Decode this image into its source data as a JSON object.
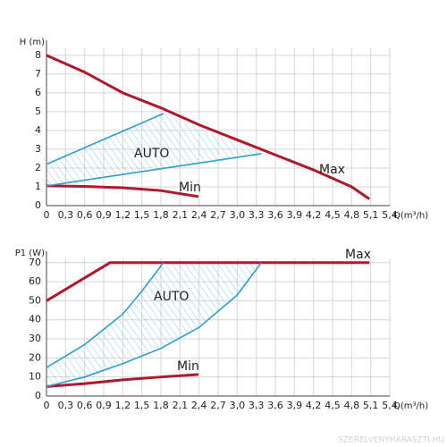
{
  "chart_data": [
    {
      "type": "line",
      "y_label": "H (m)",
      "x_label": "Q(m³/h)",
      "xlim": [
        0,
        5.4
      ],
      "ylim": [
        0,
        8.8
      ],
      "grid": true,
      "xticks": [
        0,
        {
          "value": 0.3,
          "label": "0,3"
        },
        {
          "value": 0.6,
          "label": "0,6"
        },
        {
          "value": 0.9,
          "label": "0,9"
        },
        {
          "value": 1.2,
          "label": "1,2"
        },
        {
          "value": 1.5,
          "label": "1,5"
        },
        {
          "value": 1.8,
          "label": "1,8"
        },
        {
          "value": 2.1,
          "label": "2,1"
        },
        {
          "value": 2.4,
          "label": "2,4"
        },
        {
          "value": 2.7,
          "label": "2,7"
        },
        {
          "value": 3.0,
          "label": "3,0"
        },
        {
          "value": 3.3,
          "label": "3,3"
        },
        {
          "value": 3.6,
          "label": "3,6"
        },
        {
          "value": 3.9,
          "label": "3,9"
        },
        {
          "value": 4.2,
          "label": "4,2"
        },
        {
          "value": 4.5,
          "label": "4,5"
        },
        {
          "value": 4.8,
          "label": "4,8"
        },
        {
          "value": 5.1,
          "label": "5,1"
        },
        {
          "value": 5.4,
          "label": "5,4"
        }
      ],
      "yticks": [
        0,
        1,
        2,
        3,
        4,
        5,
        6,
        7,
        8
      ],
      "series": [
        {
          "name": "Max",
          "color": "#b0182c",
          "x": [
            0,
            0.6,
            1.2,
            1.8,
            2.4,
            3.0,
            3.6,
            4.2,
            4.8,
            5.08
          ],
          "values": [
            8,
            7.1,
            6.0,
            5.2,
            4.3,
            3.5,
            2.7,
            1.9,
            1.0,
            0.35
          ]
        },
        {
          "name": "Min",
          "color": "#b0182c",
          "x": [
            0,
            0.6,
            1.2,
            1.8,
            2.39
          ],
          "values": [
            1.05,
            1.02,
            0.95,
            0.8,
            0.48
          ]
        },
        {
          "name": "AUTO",
          "color": "#2a9fd0",
          "x": [
            0,
            1.84
          ],
          "values": [
            2.2,
            4.9
          ]
        },
        {
          "color": "#2a9fd0",
          "x": [
            0,
            3.38
          ],
          "values": [
            1.05,
            2.76
          ]
        }
      ]
    },
    {
      "type": "line",
      "y_label": "P1 (W)",
      "x_label": "Q(m³/h)",
      "xlim": [
        0,
        5.4
      ],
      "ylim": [
        0,
        76
      ],
      "grid": true,
      "xticks": [
        0,
        {
          "value": 0.3,
          "label": "0,3"
        },
        {
          "value": 0.6,
          "label": "0,6"
        },
        {
          "value": 0.9,
          "label": "0,9"
        },
        {
          "value": 1.2,
          "label": "1,2"
        },
        {
          "value": 1.5,
          "label": "1,5"
        },
        {
          "value": 1.8,
          "label": "1,8"
        },
        {
          "value": 2.1,
          "label": "2,1"
        },
        {
          "value": 2.4,
          "label": "2,4"
        },
        {
          "value": 2.7,
          "label": "2,7"
        },
        {
          "value": 3.0,
          "label": "3,0"
        },
        {
          "value": 3.3,
          "label": "3,3"
        },
        {
          "value": 3.6,
          "label": "3,6"
        },
        {
          "value": 3.9,
          "label": "3,9"
        },
        {
          "value": 4.2,
          "label": "4,2"
        },
        {
          "value": 4.5,
          "label": "4,5"
        },
        {
          "value": 4.8,
          "label": "4,8"
        },
        {
          "value": 5.1,
          "label": "5,1"
        },
        {
          "value": 5.4,
          "label": "5,4"
        }
      ],
      "yticks": [
        0,
        10,
        20,
        30,
        40,
        50,
        60,
        70
      ],
      "series": [
        {
          "name": "Max",
          "color": "#b0182c",
          "x": [
            0,
            1.0,
            5.08
          ],
          "values": [
            50,
            70,
            70
          ]
        },
        {
          "name": "Min",
          "color": "#b0182c",
          "x": [
            0,
            0.6,
            1.2,
            1.8,
            2.39
          ],
          "values": [
            5,
            6.5,
            8.5,
            10,
            11.3
          ]
        },
        {
          "name": "AUTO",
          "color": "#2a9fd0",
          "x": [
            0,
            0.6,
            1.2,
            1.5,
            1.84
          ],
          "values": [
            15,
            27,
            43,
            55,
            70
          ]
        },
        {
          "color": "#2a9fd0",
          "x": [
            0,
            0.6,
            1.2,
            1.8,
            2.4,
            3.0,
            3.38
          ],
          "values": [
            5,
            10,
            17,
            25,
            36,
            53,
            70
          ]
        }
      ]
    }
  ],
  "watermark": "SZERELVENYHARASZTI.HU"
}
